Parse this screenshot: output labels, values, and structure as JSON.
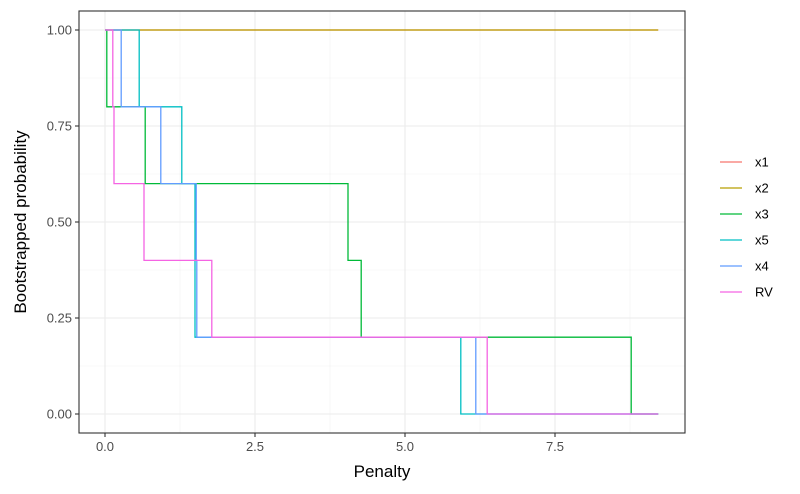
{
  "chart_data": {
    "type": "line",
    "subtype": "step",
    "title": "",
    "xlabel": "Penalty",
    "ylabel": "Bootstrapped probability",
    "xlim": [
      -0.45,
      9.7
    ],
    "ylim": [
      -0.05,
      1.05
    ],
    "x_ticks": [
      0.0,
      2.5,
      5.0,
      7.5
    ],
    "x_tick_labels": [
      "0.0",
      "2.5",
      "5.0",
      "7.5"
    ],
    "y_ticks": [
      0.0,
      0.25,
      0.5,
      0.75,
      1.0
    ],
    "y_tick_labels": [
      "0.00",
      "0.25",
      "0.50",
      "0.75",
      "1.00"
    ],
    "grid": true,
    "legend_position": "right",
    "series": [
      {
        "name": "x1",
        "color": "#F8766D",
        "x": [
          0,
          9.22
        ],
        "y": [
          1.0,
          1.0
        ]
      },
      {
        "name": "x2",
        "color": "#B79F00",
        "x": [
          0,
          9.22
        ],
        "y": [
          1.0,
          1.0
        ]
      },
      {
        "name": "x3",
        "color": "#00BA38",
        "x": [
          0,
          0.03,
          0.67,
          4.05,
          4.27,
          8.77,
          9.22
        ],
        "y": [
          1.0,
          0.8,
          0.6,
          0.4,
          0.2,
          0.0,
          0.0
        ]
      },
      {
        "name": "x5",
        "color": "#00BFC4",
        "x": [
          0,
          0.57,
          1.28,
          1.5,
          5.93,
          9.22
        ],
        "y": [
          1.0,
          0.8,
          0.6,
          0.2,
          0.0,
          0.0
        ]
      },
      {
        "name": "x4",
        "color": "#619CFF",
        "x": [
          0,
          0.27,
          0.93,
          1.52,
          1.53,
          6.18,
          9.22
        ],
        "y": [
          1.0,
          0.8,
          0.6,
          0.4,
          0.2,
          0.0,
          0.0
        ]
      },
      {
        "name": "RV",
        "color": "#F564E3",
        "x": [
          0,
          0.13,
          0.15,
          0.65,
          1.78,
          6.37,
          9.22
        ],
        "y": [
          1.0,
          0.8,
          0.6,
          0.4,
          0.2,
          0.0,
          0.0
        ]
      }
    ]
  }
}
